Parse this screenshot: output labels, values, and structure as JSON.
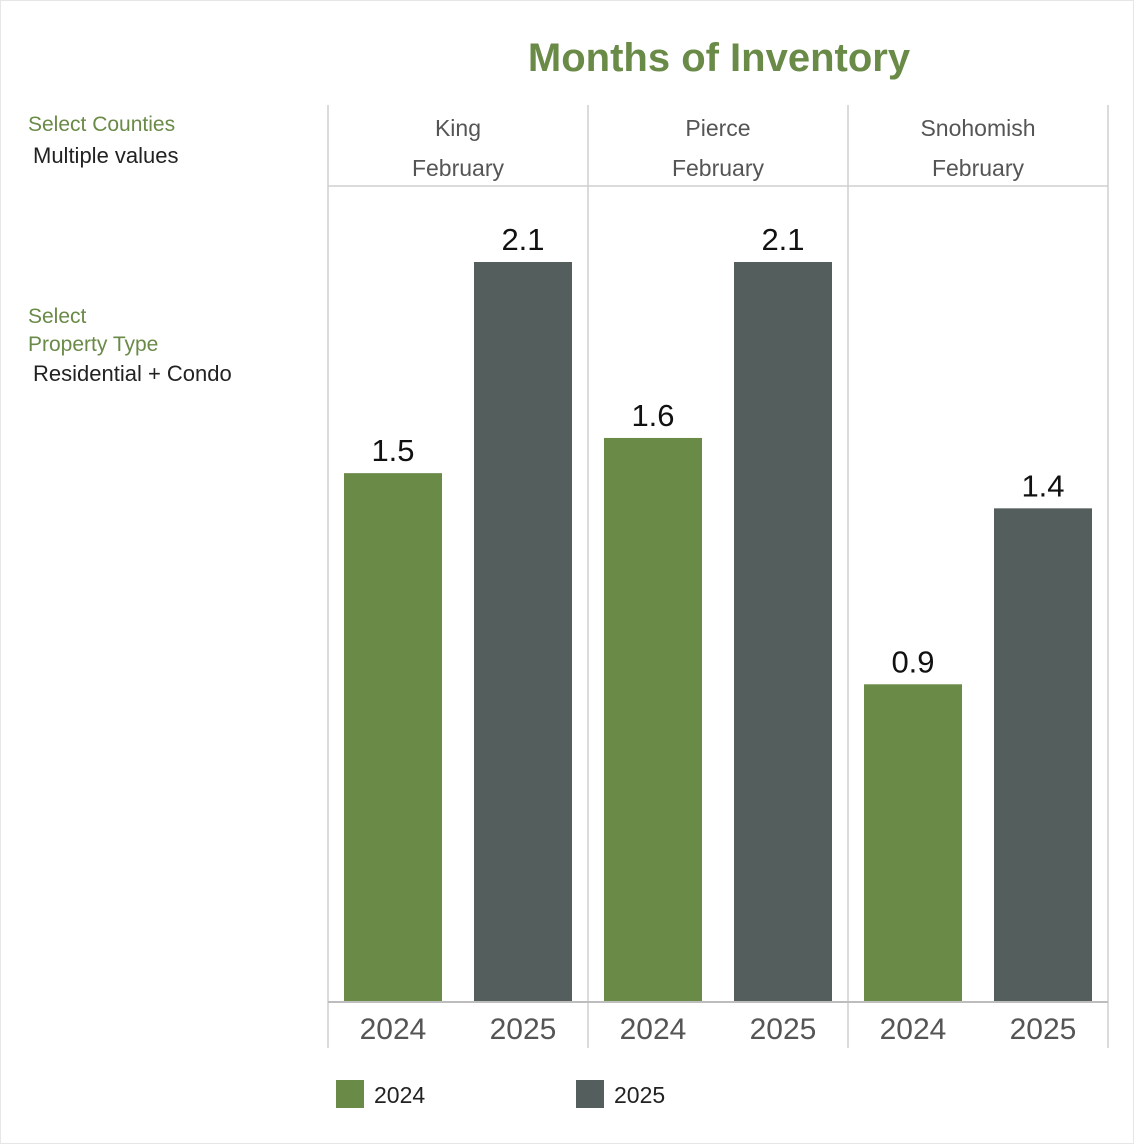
{
  "filters": {
    "counties_label": "Select Counties",
    "counties_value": "Multiple values",
    "property_label_line1": "Select",
    "property_label_line2": "Property Type",
    "property_value": "Residential + Condo"
  },
  "colors": {
    "2024": "#6a8a48",
    "2025": "#545e5c"
  },
  "chart_data": {
    "type": "bar",
    "title": "Months of Inventory",
    "ylim": [
      0,
      2.1
    ],
    "grid": false,
    "legend_placement": "bottom",
    "legend": [
      {
        "name": "2024",
        "color_key": "2024"
      },
      {
        "name": "2025",
        "color_key": "2025"
      }
    ],
    "panels": [
      {
        "county": "King",
        "month": "February",
        "bars": [
          {
            "year": "2024",
            "value": 1.5,
            "label": "1.5"
          },
          {
            "year": "2025",
            "value": 2.1,
            "label": "2.1"
          }
        ]
      },
      {
        "county": "Pierce",
        "month": "February",
        "bars": [
          {
            "year": "2024",
            "value": 1.6,
            "label": "1.6"
          },
          {
            "year": "2025",
            "value": 2.1,
            "label": "2.1"
          }
        ]
      },
      {
        "county": "Snohomish",
        "month": "February",
        "bars": [
          {
            "year": "2024",
            "value": 0.9,
            "label": "0.9"
          },
          {
            "year": "2025",
            "value": 1.4,
            "label": "1.4"
          }
        ]
      }
    ]
  }
}
